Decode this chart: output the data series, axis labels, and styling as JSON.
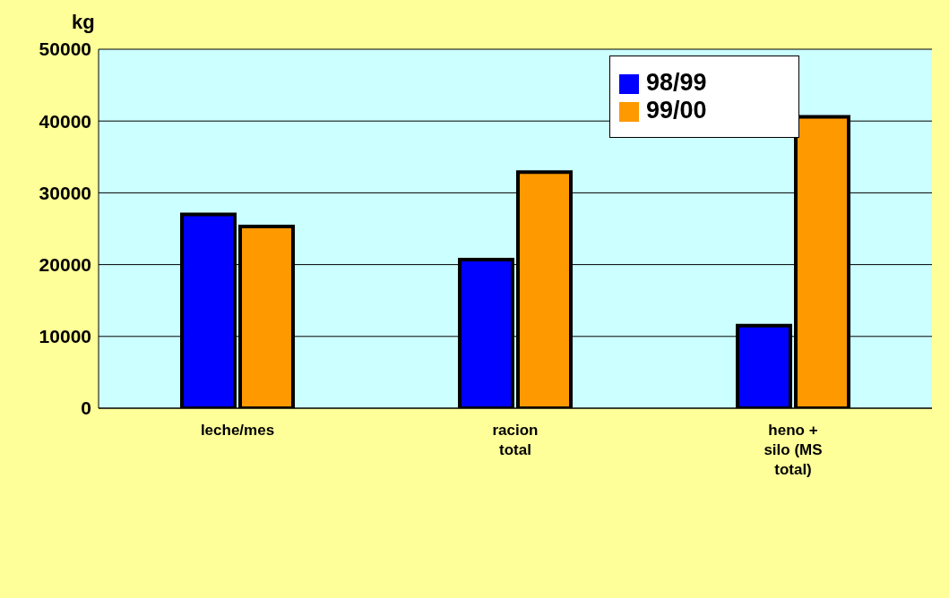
{
  "chart_data": {
    "type": "bar",
    "ylabel": "kg",
    "categories": [
      "leche/mes",
      "racion total",
      "heno + silo (MS total)"
    ],
    "series": [
      {
        "name": "98/99",
        "color": "#0000ff",
        "values": [
          27000,
          20700,
          11500
        ]
      },
      {
        "name": "99/00",
        "color": "#ff9900",
        "values": [
          25300,
          32900,
          40600
        ]
      }
    ],
    "ylim": [
      0,
      50000
    ],
    "yticks": [
      0,
      10000,
      20000,
      30000,
      40000,
      50000
    ],
    "grid": "y",
    "legend": "top right"
  }
}
